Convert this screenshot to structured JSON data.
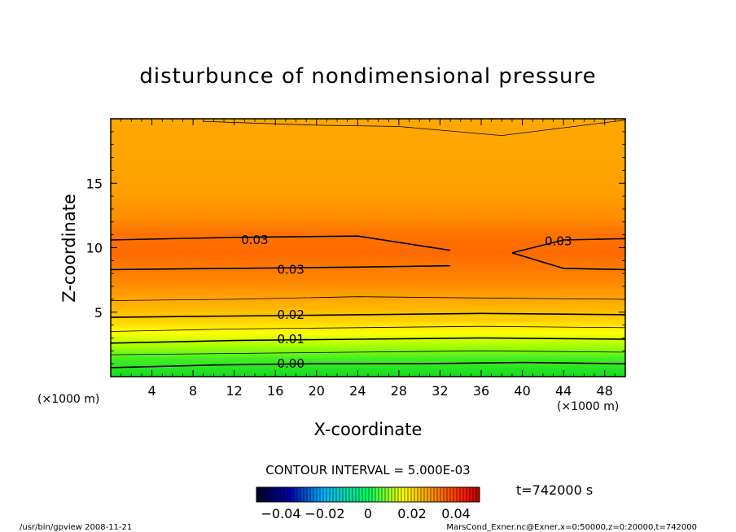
{
  "chart_data": {
    "type": "contour",
    "title": "disturbunce of nondimensional pressure",
    "xlabel": "X-coordinate",
    "ylabel": "Z-coordinate",
    "x_unit": "(×1000 m)",
    "xlim": [
      0,
      50
    ],
    "ylim": [
      0,
      20
    ],
    "x_ticks": [
      4,
      8,
      12,
      16,
      20,
      24,
      28,
      32,
      36,
      40,
      44,
      48
    ],
    "y_ticks": [
      5,
      10,
      15
    ],
    "contour_interval": "CONTOUR INTERVAL = 5.000E-03",
    "contour_labels": [
      {
        "text": "0.03",
        "x": 14,
        "z": 10.6
      },
      {
        "text": "0.03",
        "x": 17.5,
        "z": 8.3
      },
      {
        "text": "0.03",
        "x": 43.5,
        "z": 10.5
      },
      {
        "text": "0.02",
        "x": 17.5,
        "z": 4.8
      },
      {
        "text": "0.01",
        "x": 17.5,
        "z": 2.9
      },
      {
        "text": "0.00",
        "x": 17.5,
        "z": 1.0
      }
    ],
    "contour_levels": [
      {
        "value": 0.0,
        "z_profile": [
          [
            0,
            0.7
          ],
          [
            10,
            0.9
          ],
          [
            20,
            1.0
          ],
          [
            30,
            1.0
          ],
          [
            40,
            1.1
          ],
          [
            50,
            1.0
          ]
        ]
      },
      {
        "value": 0.005,
        "z_profile": [
          [
            0,
            1.7
          ],
          [
            12,
            1.8
          ],
          [
            24,
            1.9
          ],
          [
            36,
            2.0
          ],
          [
            50,
            1.9
          ]
        ]
      },
      {
        "value": 0.01,
        "z_profile": [
          [
            0,
            2.6
          ],
          [
            12,
            2.8
          ],
          [
            24,
            2.9
          ],
          [
            36,
            3.0
          ],
          [
            50,
            2.9
          ]
        ]
      },
      {
        "value": 0.015,
        "z_profile": [
          [
            0,
            3.5
          ],
          [
            12,
            3.7
          ],
          [
            24,
            3.8
          ],
          [
            36,
            3.9
          ],
          [
            50,
            3.8
          ]
        ]
      },
      {
        "value": 0.02,
        "z_profile": [
          [
            0,
            4.6
          ],
          [
            12,
            4.7
          ],
          [
            24,
            4.8
          ],
          [
            36,
            4.9
          ],
          [
            50,
            4.8
          ]
        ]
      },
      {
        "value": 0.025,
        "z_profile": [
          [
            0,
            5.9
          ],
          [
            12,
            6.0
          ],
          [
            24,
            6.2
          ],
          [
            36,
            6.1
          ],
          [
            50,
            6.0
          ]
        ]
      },
      {
        "value": 0.03,
        "z_profile": [
          [
            0,
            8.3
          ],
          [
            12,
            8.4
          ],
          [
            24,
            8.5
          ],
          [
            33,
            8.6
          ]
        ]
      },
      {
        "value": 0.03,
        "z_profile": [
          [
            0,
            10.6
          ],
          [
            12,
            10.8
          ],
          [
            24,
            10.9
          ],
          [
            33,
            9.8
          ]
        ]
      },
      {
        "value": 0.03,
        "z_profile": [
          [
            39,
            9.6
          ],
          [
            44,
            10.6
          ],
          [
            50,
            10.7
          ]
        ]
      },
      {
        "value": 0.03,
        "z_profile": [
          [
            39,
            9.6
          ],
          [
            44,
            8.4
          ],
          [
            50,
            8.3
          ]
        ]
      },
      {
        "value": 0.025,
        "z_profile": [
          [
            9,
            19.8
          ],
          [
            20,
            19.5
          ],
          [
            28,
            19.4
          ],
          [
            38,
            18.7
          ],
          [
            50,
            19.9
          ]
        ]
      }
    ],
    "colorbar": {
      "ticks": [
        "−0.04",
        "−0.02",
        "0",
        "0.02",
        "0.04"
      ],
      "colors": [
        "#000028",
        "#0000aa",
        "#00b4ff",
        "#00ff60",
        "#ffff00",
        "#ff8800",
        "#ff2200",
        "#c00000"
      ]
    },
    "fill_colors": {
      "low": "#22dd22",
      "mid": "#ccff00",
      "yellow": "#ffe000",
      "orange_light": "#ffa500",
      "orange": "#ff8a00",
      "orange_deep": "#ff6600"
    }
  },
  "time_label": "t=742000 s",
  "footer_left": "/usr/bin/gpview   2008-11-21",
  "footer_right": "MarsCond_Exner.nc@Exner,x=0:50000,z=0:20000,t=742000"
}
